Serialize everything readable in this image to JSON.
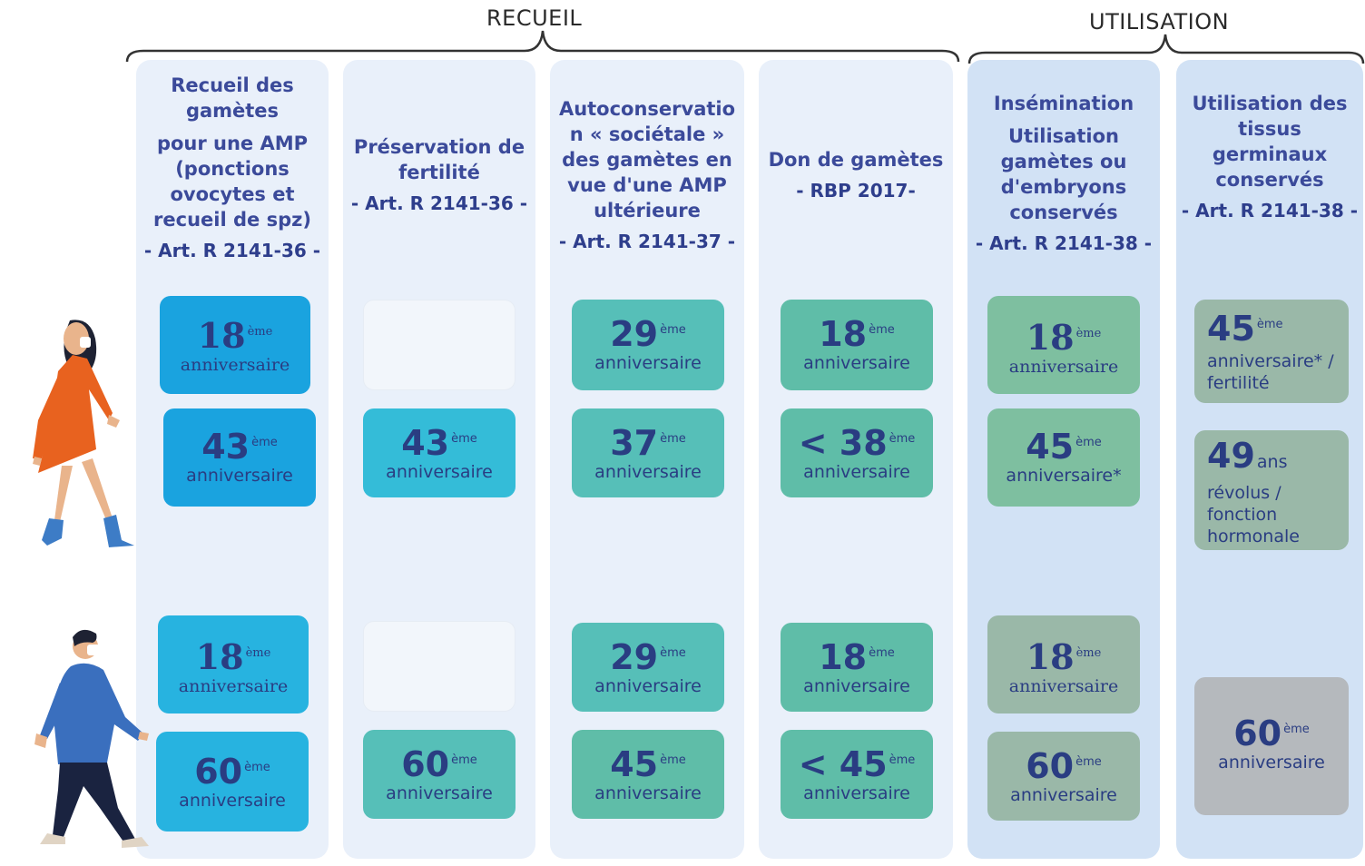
{
  "groups": {
    "recueil": "RECUEIL",
    "utilisation": "UTILISATION"
  },
  "columns": [
    {
      "title_lines": [
        "Recueil des",
        "gamètes",
        "pour une AMP",
        "(ponctions",
        "ovocytes et",
        "recueil de spz)"
      ],
      "art": "- Art. R 2141-36 -",
      "woman": [
        {
          "num": "18",
          "sup": "ème",
          "label": "anniversaire"
        },
        {
          "num": "43",
          "sup": "ème",
          "label": "anniversaire"
        }
      ],
      "man": [
        {
          "num": "18",
          "sup": "ème",
          "label": "anniversaire"
        },
        {
          "num": "60",
          "sup": "ème",
          "label": "anniversaire"
        }
      ]
    },
    {
      "title_lines": [
        "Préservation de",
        "fertilité"
      ],
      "art": "- Art. R 2141-36 -",
      "woman": [
        null,
        {
          "num": "43",
          "sup": "ème",
          "label": "anniversaire"
        }
      ],
      "man": [
        null,
        {
          "num": "60",
          "sup": "ème",
          "label": "anniversaire"
        }
      ]
    },
    {
      "title_lines": [
        "Autoconservatio",
        "n « sociétale »",
        "des gamètes en",
        "vue d'une AMP",
        "ultérieure"
      ],
      "art": "- Art. R 2141-37 -",
      "woman": [
        {
          "num": "29",
          "sup": "ème",
          "label": "anniversaire"
        },
        {
          "num": "37",
          "sup": "ème",
          "label": "anniversaire"
        }
      ],
      "man": [
        {
          "num": "29",
          "sup": "ème",
          "label": "anniversaire"
        },
        {
          "num": "45",
          "sup": "ème",
          "label": "anniversaire"
        }
      ]
    },
    {
      "title_lines": [
        "Don de gamètes"
      ],
      "art": "- RBP 2017-",
      "woman": [
        {
          "num": "18",
          "sup": "ème",
          "label": "anniversaire"
        },
        {
          "num": "< 38",
          "sup": "ème",
          "label": "anniversaire"
        }
      ],
      "man": [
        {
          "num": "18",
          "sup": "ème",
          "label": "anniversaire"
        },
        {
          "num": "< 45",
          "sup": "ème",
          "label": "anniversaire"
        }
      ]
    },
    {
      "title_lines": [
        "Insémination",
        "Utilisation",
        "gamètes ou",
        "d'embryons",
        "conservés"
      ],
      "art": "- Art. R 2141-38 -",
      "woman": [
        {
          "num": "18",
          "sup": "ème",
          "label": "anniversaire"
        },
        {
          "num": "45",
          "sup": "ème",
          "label": "anniversaire*"
        }
      ],
      "man": [
        {
          "num": "18",
          "sup": "ème",
          "label": "anniversaire"
        },
        {
          "num": "60",
          "sup": "ème",
          "label": "anniversaire"
        }
      ]
    },
    {
      "title_lines": [
        "Utilisation des",
        "tissus",
        "germinaux",
        "conservés"
      ],
      "art": "- Art. R 2141-38 -",
      "woman": [
        {
          "num": "45",
          "sup": "ème",
          "label": "anniversaire* / fertilité"
        },
        {
          "num": "49",
          "sup": "ans",
          "label": "révolus / fonction hormonale"
        }
      ],
      "man": [
        {
          "num": "60",
          "sup": "ème",
          "label": "anniversaire"
        }
      ]
    }
  ],
  "colors": {
    "blue": "#1aa3df",
    "cyan": "#34bcd8",
    "teal": "#56bfb8",
    "green": "#7ebfa0",
    "sage": "#9ab8a8",
    "grey": "#b5b9bd"
  }
}
